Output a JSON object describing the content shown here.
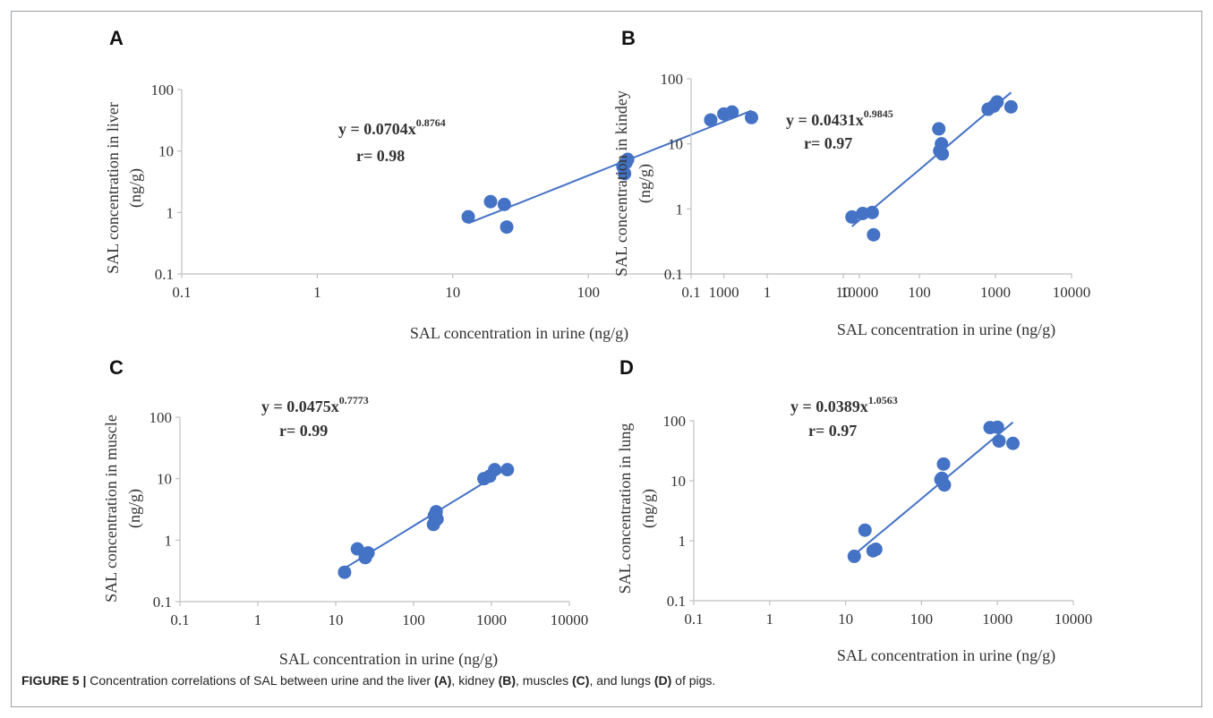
{
  "style": {
    "marker_color": "#4472c4",
    "axis_color": "#c0c0c0",
    "text_color": "#333333"
  },
  "caption": {
    "label": "FIGURE 5 |",
    "parts": [
      {
        "text": " Concentration correlations of SAL between urine and the liver ",
        "bold": false
      },
      {
        "text": "(A)",
        "bold": true
      },
      {
        "text": ", kidney ",
        "bold": false
      },
      {
        "text": "(B)",
        "bold": true
      },
      {
        "text": ", muscles ",
        "bold": false
      },
      {
        "text": "(C)",
        "bold": true
      },
      {
        "text": ", and lungs ",
        "bold": false
      },
      {
        "text": "(D)",
        "bold": true
      },
      {
        "text": " of pigs.",
        "bold": false
      }
    ]
  },
  "chart_data": [
    {
      "panel": "A",
      "type": "scatter",
      "xscale": "log",
      "yscale": "log",
      "xlim": [
        0.1,
        10000
      ],
      "ylim": [
        0.1,
        100
      ],
      "xticks": [
        "0.1",
        "1",
        "10",
        "100",
        "1000",
        "10000"
      ],
      "yticks": [
        "0.1",
        "1",
        "10",
        "100"
      ],
      "xlabel": "SAL concentration in urine (ng/g)",
      "ylabel_lines": [
        "SAL concentration in liver",
        "(ng/g)"
      ],
      "equation": {
        "base": "y = 0.0704x",
        "exponent": "0.8764"
      },
      "r_text": "r= 0.98",
      "fit": {
        "coef": 0.0704,
        "exp": 0.8764,
        "x_range": [
          13,
          1600
        ]
      },
      "points": [
        [
          13,
          0.85
        ],
        [
          19,
          1.5
        ],
        [
          24,
          1.35
        ],
        [
          25,
          0.58
        ],
        [
          180,
          5.6
        ],
        [
          185,
          4.3
        ],
        [
          190,
          6.5
        ],
        [
          195,
          7.3
        ],
        [
          800,
          32
        ],
        [
          1000,
          40
        ],
        [
          1150,
          43
        ],
        [
          1600,
          35
        ]
      ]
    },
    {
      "panel": "B",
      "type": "scatter",
      "xscale": "log",
      "yscale": "log",
      "xlim": [
        0.1,
        10000
      ],
      "ylim": [
        0.1,
        100
      ],
      "xticks": [
        "0.1",
        "1",
        "10",
        "100",
        "1000",
        "10000"
      ],
      "yticks": [
        "0.1",
        "1",
        "10",
        "100"
      ],
      "xlabel": "SAL concentration in urine (ng/g)",
      "ylabel_lines": [
        "SAL concentration in kindey",
        "(ng/g)"
      ],
      "equation": {
        "base": "y = 0.0431x",
        "exponent": "0.9845"
      },
      "r_text": "r= 0.97",
      "fit": {
        "coef": 0.0431,
        "exp": 0.9845,
        "x_range": [
          13,
          1600
        ]
      },
      "points": [
        [
          13,
          0.75
        ],
        [
          18,
          0.85
        ],
        [
          24,
          0.88
        ],
        [
          25,
          0.4
        ],
        [
          180,
          17
        ],
        [
          185,
          7.8
        ],
        [
          195,
          10
        ],
        [
          200,
          7
        ],
        [
          800,
          34
        ],
        [
          950,
          38
        ],
        [
          1050,
          44
        ],
        [
          1600,
          37
        ]
      ]
    },
    {
      "panel": "C",
      "type": "scatter",
      "xscale": "log",
      "yscale": "log",
      "xlim": [
        0.1,
        10000
      ],
      "ylim": [
        0.1,
        100
      ],
      "xticks": [
        "0.1",
        "1",
        "10",
        "100",
        "1000",
        "10000"
      ],
      "yticks": [
        "0.1",
        "1",
        "10",
        "100"
      ],
      "xlabel": "SAL concentration in urine (ng/g)",
      "ylabel_lines": [
        "SAL concentration in muscle",
        "(ng/g)"
      ],
      "equation": {
        "base": "y = 0.0475x",
        "exponent": "0.7773"
      },
      "r_text": "r= 0.99",
      "fit": {
        "coef": 0.0475,
        "exp": 0.7773,
        "x_range": [
          13,
          1600
        ]
      },
      "points": [
        [
          13,
          0.3
        ],
        [
          19,
          0.72
        ],
        [
          24,
          0.52
        ],
        [
          26,
          0.62
        ],
        [
          180,
          1.8
        ],
        [
          185,
          2.5
        ],
        [
          195,
          2.9
        ],
        [
          200,
          2.2
        ],
        [
          800,
          10
        ],
        [
          950,
          11
        ],
        [
          1100,
          14
        ],
        [
          1600,
          14
        ]
      ]
    },
    {
      "panel": "D",
      "type": "scatter",
      "xscale": "log",
      "yscale": "log",
      "xlim": [
        0.1,
        10000
      ],
      "ylim": [
        0.1,
        100
      ],
      "xticks": [
        "0.1",
        "1",
        "10",
        "100",
        "1000",
        "10000"
      ],
      "yticks": [
        "0.1",
        "1",
        "10",
        "100"
      ],
      "xlabel": "SAL concentration in urine (ng/g)",
      "ylabel_lines": [
        "SAL concentration in lung",
        "(ng/g)"
      ],
      "equation": {
        "base": "y = 0.0389x",
        "exponent": "1.0563"
      },
      "r_text": "r= 0.97",
      "fit": {
        "coef": 0.0389,
        "exp": 1.0563,
        "x_range": [
          13,
          1600
        ]
      },
      "points": [
        [
          13,
          0.55
        ],
        [
          18,
          1.5
        ],
        [
          23,
          0.68
        ],
        [
          25,
          0.72
        ],
        [
          180,
          10.5
        ],
        [
          185,
          11
        ],
        [
          195,
          19
        ],
        [
          200,
          8.5
        ],
        [
          800,
          77
        ],
        [
          1000,
          78
        ],
        [
          1050,
          46
        ],
        [
          1600,
          42
        ]
      ]
    }
  ]
}
